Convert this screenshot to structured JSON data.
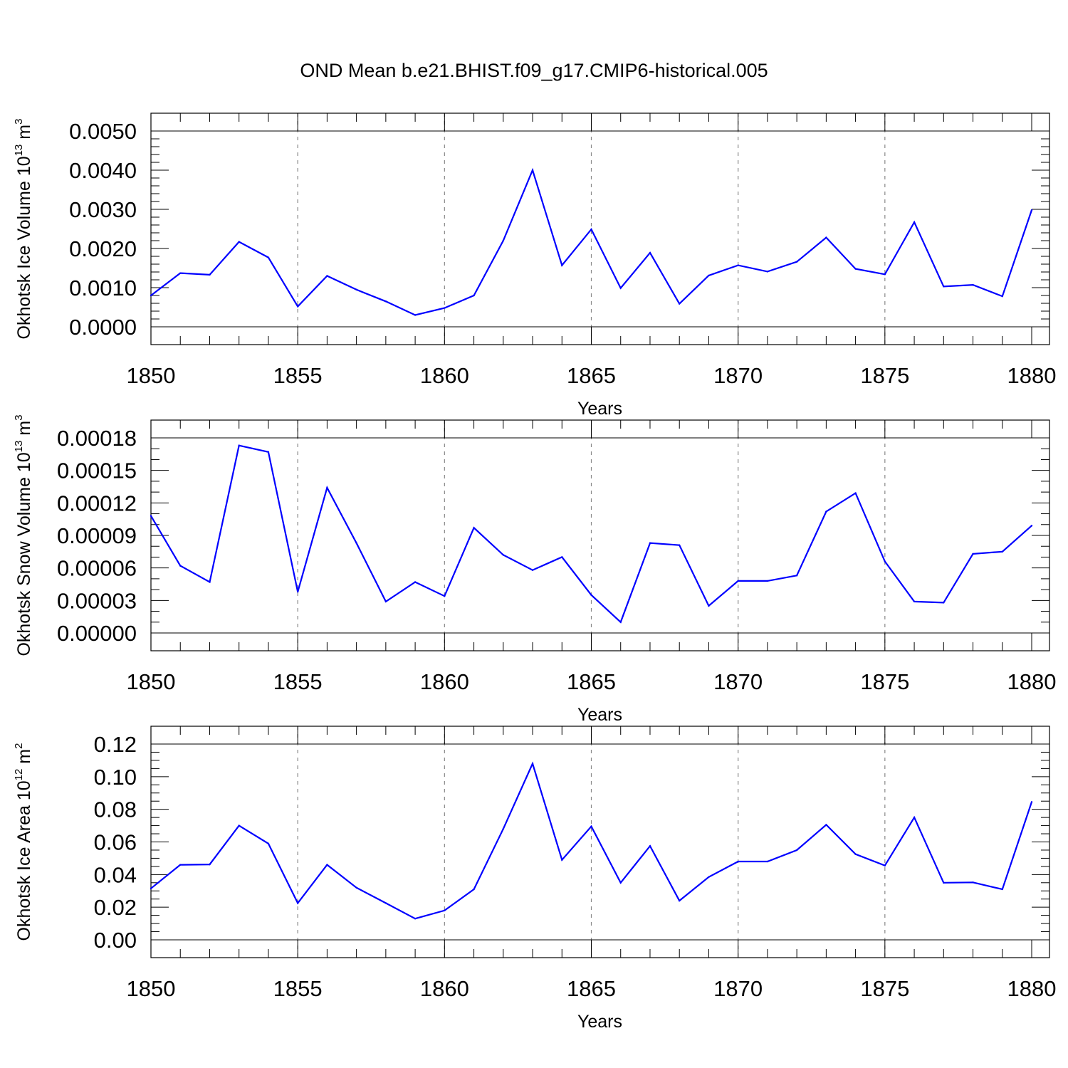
{
  "title": "OND Mean b.e21.BHIST.f09_g17.CMIP6-historical.005",
  "colors": {
    "line": "#0000ff",
    "axis": "#000000",
    "grid": "#888888"
  },
  "chart_data": [
    {
      "type": "line",
      "ylabel": {
        "text": "Okhotsk Ice Volume 10",
        "sup": "13",
        "unit": " m",
        "unit_sup": "3"
      },
      "xlabel": "Years",
      "xlim": [
        1850,
        1880
      ],
      "ylim": [
        0,
        0.005
      ],
      "x_ticks": [
        "1850",
        "1855",
        "1860",
        "1865",
        "1870",
        "1875",
        "1880"
      ],
      "y_ticks": [
        "0.0000",
        "0.0010",
        "0.0020",
        "0.0030",
        "0.0040",
        "0.0050"
      ],
      "y_major_step": 0.001,
      "y_minor_step": 0.0002,
      "grid": "dashed vertical at major x ticks",
      "x": [
        1850,
        1851,
        1852,
        1853,
        1854,
        1855,
        1856,
        1857,
        1858,
        1859,
        1860,
        1861,
        1862,
        1863,
        1864,
        1865,
        1866,
        1867,
        1868,
        1869,
        1870,
        1871,
        1872,
        1873,
        1874,
        1875,
        1876,
        1877,
        1878,
        1879,
        1880
      ],
      "values": [
        0.0008,
        0.00137,
        0.00133,
        0.00217,
        0.00177,
        0.00052,
        0.0013,
        0.00095,
        0.00065,
        0.0003,
        0.00048,
        0.0008,
        0.0022,
        0.004,
        0.00157,
        0.00249,
        0.00099,
        0.00189,
        0.00059,
        0.00131,
        0.00157,
        0.00141,
        0.00166,
        0.00228,
        0.00148,
        0.00134,
        0.00267,
        0.00103,
        0.00107,
        0.00078,
        0.00298
      ]
    },
    {
      "type": "line",
      "ylabel": {
        "text": "Okhotsk Snow Volume 10",
        "sup": "13",
        "unit": " m",
        "unit_sup": "3"
      },
      "xlabel": "Years",
      "xlim": [
        1850,
        1880
      ],
      "ylim": [
        0,
        0.00018
      ],
      "x_ticks": [
        "1850",
        "1855",
        "1860",
        "1865",
        "1870",
        "1875",
        "1880"
      ],
      "y_ticks": [
        "0.00000",
        "0.00003",
        "0.00006",
        "0.00009",
        "0.00012",
        "0.00015",
        "0.00018"
      ],
      "y_major_step": 3e-05,
      "y_minor_step": 1e-05,
      "grid": "dashed vertical at major x ticks",
      "x": [
        1850,
        1851,
        1852,
        1853,
        1854,
        1855,
        1856,
        1857,
        1858,
        1859,
        1860,
        1861,
        1862,
        1863,
        1864,
        1865,
        1866,
        1867,
        1868,
        1869,
        1870,
        1871,
        1872,
        1873,
        1874,
        1875,
        1876,
        1877,
        1878,
        1879,
        1880
      ],
      "values": [
        0.000108,
        6.2e-05,
        4.7e-05,
        0.000173,
        0.000167,
        3.8e-05,
        0.000134,
        8.3e-05,
        2.9e-05,
        4.7e-05,
        3.4e-05,
        9.7e-05,
        7.2e-05,
        5.8e-05,
        7e-05,
        3.5e-05,
        1e-05,
        8.3e-05,
        8.1e-05,
        2.5e-05,
        4.8e-05,
        4.8e-05,
        5.3e-05,
        0.000112,
        0.000129,
        6.6e-05,
        2.9e-05,
        2.8e-05,
        7.3e-05,
        7.5e-05,
        9.9e-05
      ]
    },
    {
      "type": "line",
      "ylabel": {
        "text": "Okhotsk Ice Area 10",
        "sup": "12",
        "unit": " m",
        "unit_sup": "2"
      },
      "xlabel": "Years",
      "xlim": [
        1850,
        1880
      ],
      "ylim": [
        0,
        0.12
      ],
      "x_ticks": [
        "1850",
        "1855",
        "1860",
        "1865",
        "1870",
        "1875",
        "1880"
      ],
      "y_ticks": [
        "0.00",
        "0.02",
        "0.04",
        "0.06",
        "0.08",
        "0.10",
        "0.12"
      ],
      "y_major_step": 0.02,
      "y_minor_step": 0.005,
      "grid": "dashed vertical at major x ticks",
      "x": [
        1850,
        1851,
        1852,
        1853,
        1854,
        1855,
        1856,
        1857,
        1858,
        1859,
        1860,
        1861,
        1862,
        1863,
        1864,
        1865,
        1866,
        1867,
        1868,
        1869,
        1870,
        1871,
        1872,
        1873,
        1874,
        1875,
        1876,
        1877,
        1878,
        1879,
        1880
      ],
      "values": [
        0.0315,
        0.046,
        0.0462,
        0.07,
        0.059,
        0.0225,
        0.046,
        0.032,
        0.0225,
        0.013,
        0.018,
        0.031,
        0.068,
        0.108,
        0.049,
        0.0695,
        0.035,
        0.0575,
        0.024,
        0.0385,
        0.048,
        0.048,
        0.055,
        0.0705,
        0.0525,
        0.0455,
        0.075,
        0.035,
        0.0352,
        0.031,
        0.0845
      ]
    }
  ]
}
